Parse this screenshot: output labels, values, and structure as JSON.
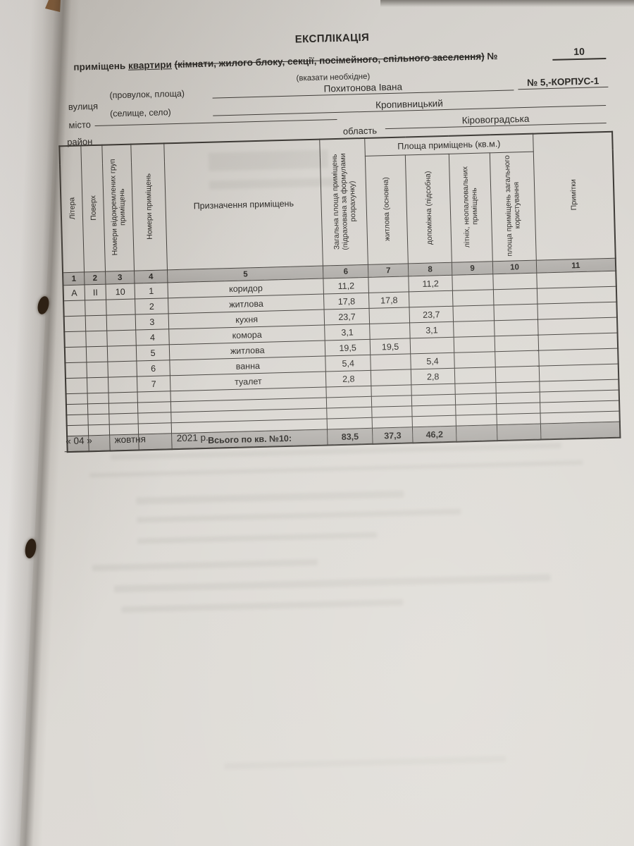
{
  "header": {
    "title": "ЕКСПЛІКАЦІЯ",
    "subtitle_prefix": "приміщень",
    "subtitle_underlined": "квартири",
    "subtitle_struck": "(кімнати, жилого блоку, секції, посімейного, спільного заселення)",
    "subtitle_no_sign": "№",
    "apartment_number": "10",
    "note": "(вказати необхідне)"
  },
  "address": {
    "street_label": "вулиця",
    "street_sublabel": "(провулок, площа)",
    "street_value": "Похитонова Івана",
    "building_value": "№ 5,-КОРПУС-1",
    "city_label": "місто",
    "city_sublabel": "(селище, село)",
    "city_value": "Кропивницький",
    "district_label": "район",
    "oblast_label": "область",
    "oblast_value": "Кіровоградська"
  },
  "table": {
    "group_header": "Площа приміщень (кв.м.)",
    "columns": [
      {
        "num": "1",
        "label": "Літера"
      },
      {
        "num": "2",
        "label": "Поверх"
      },
      {
        "num": "3",
        "label": "Номери відокремлених груп приміщень"
      },
      {
        "num": "4",
        "label": "Номери приміщень"
      },
      {
        "num": "5",
        "label": "Призначення приміщень"
      },
      {
        "num": "6",
        "label": "Загальна площа приміщень (підрахована за формулами розрахунку)"
      },
      {
        "num": "7",
        "label": "житлова (основна)"
      },
      {
        "num": "8",
        "label": "допоміжна (підсобна)"
      },
      {
        "num": "9",
        "label": "літніх, неопалювальних приміщень"
      },
      {
        "num": "10",
        "label": "площа приміщень загального користування"
      },
      {
        "num": "11",
        "label": "Примітки"
      }
    ],
    "rows": [
      {
        "cells": [
          "А",
          "II",
          "10",
          "1",
          "коридор",
          "11,2",
          "",
          "11,2",
          "",
          "",
          ""
        ]
      },
      {
        "cells": [
          "",
          "",
          "",
          "2",
          "житлова",
          "17,8",
          "17,8",
          "",
          "",
          "",
          ""
        ]
      },
      {
        "cells": [
          "",
          "",
          "",
          "3",
          "кухня",
          "23,7",
          "",
          "23,7",
          "",
          "",
          ""
        ]
      },
      {
        "cells": [
          "",
          "",
          "",
          "4",
          "комора",
          "3,1",
          "",
          "3,1",
          "",
          "",
          ""
        ]
      },
      {
        "cells": [
          "",
          "",
          "",
          "5",
          "житлова",
          "19,5",
          "19,5",
          "",
          "",
          "",
          ""
        ]
      },
      {
        "cells": [
          "",
          "",
          "",
          "6",
          "ванна",
          "5,4",
          "",
          "5,4",
          "",
          "",
          ""
        ]
      },
      {
        "cells": [
          "",
          "",
          "",
          "7",
          "туалет",
          "2,8",
          "",
          "2,8",
          "",
          "",
          ""
        ]
      },
      {
        "cells": [
          "",
          "",
          "",
          "",
          "",
          "",
          "",
          "",
          "",
          "",
          ""
        ]
      },
      {
        "cells": [
          "",
          "",
          "",
          "",
          "",
          "",
          "",
          "",
          "",
          "",
          ""
        ]
      },
      {
        "cells": [
          "",
          "",
          "",
          "",
          "",
          "",
          "",
          "",
          "",
          "",
          ""
        ]
      },
      {
        "cells": [
          "",
          "",
          "",
          "",
          "",
          "",
          "",
          "",
          "",
          "",
          ""
        ]
      }
    ],
    "total_row": {
      "label": "Всього по кв. №10:",
      "total_area": "83,5",
      "living_area": "37,3",
      "auxiliary_area": "46,2"
    }
  },
  "footer": {
    "day": "« 04 »",
    "month": "жовтня",
    "year": "2021 р."
  }
}
